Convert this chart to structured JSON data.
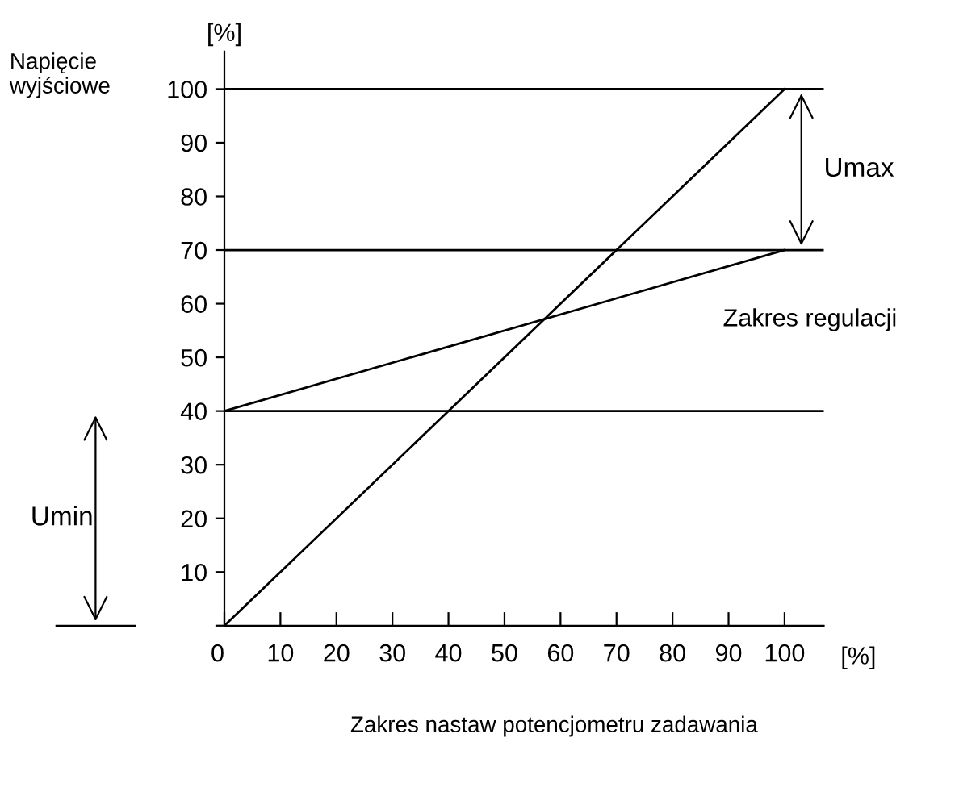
{
  "chart_data": {
    "type": "line",
    "ylabel": "Napięcie wyjściowe",
    "xlabel": "Zakres nastaw potencjometru zadawania",
    "x": [
      0,
      100
    ],
    "series": [
      {
        "color": "#000000",
        "values": [
          0,
          100
        ]
      },
      {
        "color": "#000000",
        "values": [
          40,
          70
        ]
      }
    ],
    "xlim": [
      0,
      107
    ],
    "ylim": [
      0,
      107
    ],
    "xticks": [
      {
        "value": 0,
        "label": "0"
      },
      10,
      20,
      30,
      40,
      50,
      60,
      70,
      80,
      90,
      100
    ],
    "yticks": [
      {
        "value": 0,
        "label": null
      },
      10,
      20,
      30,
      40,
      50,
      60,
      70,
      80,
      90,
      100
    ],
    "ref_lines": [
      {
        "axis": "y",
        "value": 100,
        "color": "#000000"
      },
      {
        "axis": "y",
        "value": 70,
        "color": "#000000"
      },
      {
        "axis": "y",
        "value": 40,
        "color": "#000000"
      }
    ],
    "annotations": [
      "[%]",
      "[%]",
      "Umax",
      "Umin",
      "Zakres regulacji"
    ],
    "grid": false,
    "legend": false,
    "marker": "none",
    "line_style": "solid"
  }
}
